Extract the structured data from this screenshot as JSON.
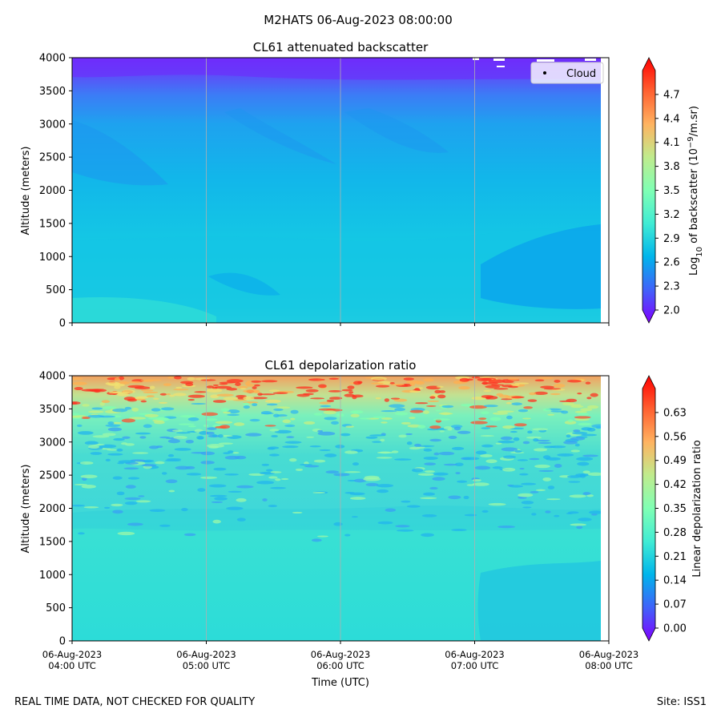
{
  "figure": {
    "suptitle": "M2HATS 06-Aug-2023 08:00:00",
    "footer_left": "REAL TIME DATA, NOT CHECKED FOR QUALITY",
    "footer_right": "Site: ISS1"
  },
  "chart_data": [
    {
      "type": "heatmap",
      "title": "CL61 attenuated backscatter",
      "ylabel": "Altitude (meters)",
      "ylim": [
        0,
        4000
      ],
      "y_ticks": [
        0,
        500,
        1000,
        1500,
        2000,
        2500,
        3000,
        3500,
        4000
      ],
      "x_range_hours_utc": [
        4,
        8
      ],
      "x_ticks": [],
      "xlabel": "",
      "grid": "vertical gridlines at each hour",
      "legend": {
        "entries": [
          "Cloud"
        ],
        "placement": "upper-right"
      },
      "colorbar": {
        "label": "Log10 of backscatter (10^-9/m.sr)",
        "label_parts": [
          "Log",
          "10",
          " of backscatter (10",
          "−9",
          "/m.sr)"
        ],
        "colormap": "rainbow",
        "vmin": 2.0,
        "vmax": 5.0,
        "ticks": [
          "2.0",
          "2.3",
          "2.6",
          "2.9",
          "3.2",
          "3.5",
          "3.8",
          "4.1",
          "4.4",
          "4.7"
        ],
        "extend": "both"
      },
      "field_description": "Values mostly 2.6–3.0 (cyan) below 3000 m, decreasing to about 2.0–2.3 (purple) near 3700–4000 m; isolated cloud detections near 3800–4000 m after 07:00 UTC."
    },
    {
      "type": "heatmap",
      "title": "CL61 depolarization ratio",
      "ylabel": "Altitude (meters)",
      "ylim": [
        0,
        4000
      ],
      "y_ticks": [
        0,
        500,
        1000,
        1500,
        2000,
        2500,
        3000,
        3500,
        4000
      ],
      "x_range_hours_utc": [
        4,
        8
      ],
      "x_ticks": [
        [
          "06-Aug-2023",
          "04:00 UTC"
        ],
        [
          "06-Aug-2023",
          "05:00 UTC"
        ],
        [
          "06-Aug-2023",
          "06:00 UTC"
        ],
        [
          "06-Aug-2023",
          "07:00 UTC"
        ],
        [
          "06-Aug-2023",
          "08:00 UTC"
        ]
      ],
      "xlabel": "Time (UTC)",
      "grid": "vertical gridlines at each hour",
      "colorbar": {
        "label": "Linear depolarization ratio",
        "colormap": "rainbow",
        "vmin": 0.0,
        "vmax": 0.7,
        "ticks": [
          "0.00",
          "0.07",
          "0.14",
          "0.21",
          "0.28",
          "0.35",
          "0.42",
          "0.49",
          "0.56",
          "0.63"
        ],
        "extend": "both"
      },
      "field_description": "Values about 0.24–0.28 below 2000 m, noisy 0.15–0.40 between 2000 and 3500 m, reaching 0.5–0.7 near 3600–4000 m."
    }
  ]
}
